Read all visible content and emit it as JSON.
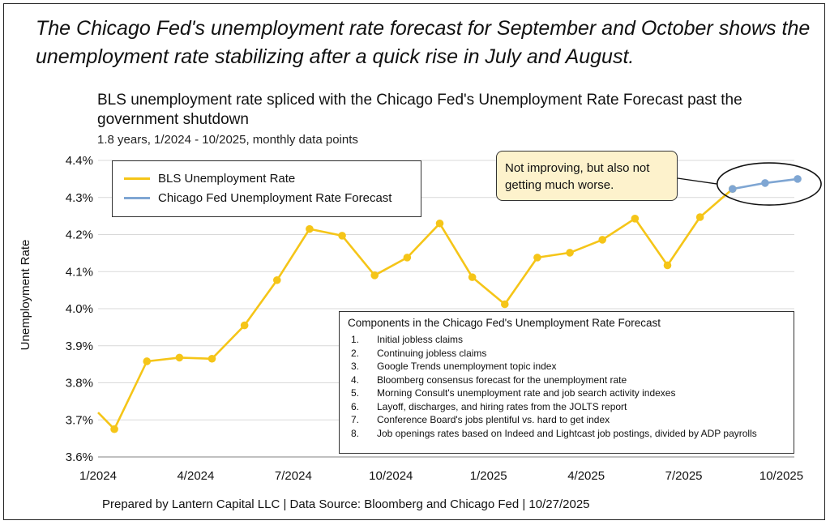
{
  "headline": "The Chicago Fed's unemployment rate forecast for September and October shows the unemployment rate stabilizing after a quick rise in July and August.",
  "footer": "Prepared by Lantern Capital LLC | Data Source: Bloomberg and Chicago Fed | 10/27/2025",
  "callout": "Not improving, but also not getting much worse.",
  "components": {
    "title": "Components in the Chicago Fed's Unemployment Rate Forecast",
    "items": [
      {
        "num": "1.",
        "text": "Initial jobless claims"
      },
      {
        "num": "2.",
        "text": "Continuing jobless claims"
      },
      {
        "num": "3.",
        "text": "Google Trends unemployment topic index"
      },
      {
        "num": "4.",
        "text": "Bloomberg consensus forecast for the unemployment rate"
      },
      {
        "num": "5.",
        "text": "Morning Consult's unemployment rate and job search activity indexes"
      },
      {
        "num": "6.",
        "text": "Layoff, discharges, and hiring rates from the JOLTS report"
      },
      {
        "num": "7.",
        "text": "Conference Board's jobs plentiful vs. hard to get index"
      },
      {
        "num": "8.",
        "text": "Job openings rates based on Indeed and Lightcast job postings, divided by ADP payrolls"
      }
    ]
  },
  "colors": {
    "bls": "#f5c518",
    "forecast": "#7fa6d3",
    "callout_bg": "#fdf2cc"
  },
  "chart_data": {
    "type": "line",
    "title": "BLS unemployment rate spliced with the Chicago Fed's Unemployment Rate Forecast past the government shutdown",
    "subtitle": "1.8 years, 1/2024 - 10/2025, monthly data points",
    "ylabel": "Unemployment Rate",
    "ylim": [
      3.6,
      4.4
    ],
    "yticks": [
      3.6,
      3.7,
      3.8,
      3.9,
      4.0,
      4.1,
      4.2,
      4.3,
      4.4
    ],
    "ytick_labels": [
      "3.6%",
      "3.7%",
      "3.8%",
      "3.9%",
      "4.0%",
      "4.1%",
      "4.2%",
      "4.3%",
      "4.4%"
    ],
    "xlim": [
      0,
      21
    ],
    "xtick_positions": [
      0,
      3,
      6,
      9,
      12,
      15,
      18,
      21
    ],
    "xtick_labels": [
      "1/2024",
      "4/2024",
      "7/2024",
      "10/2024",
      "1/2025",
      "4/2025",
      "7/2025",
      "10/2025"
    ],
    "series": [
      {
        "name": "BLS Unemployment Rate",
        "color": "#f5c518",
        "x": [
          0,
          0.5,
          1.5,
          2.5,
          3.5,
          4.5,
          5.5,
          6.5,
          7.5,
          8.5,
          9.5,
          10.5,
          11.5,
          12.5,
          13.5,
          14.5,
          15.5,
          16.5,
          17.5,
          18.5,
          19.5
        ],
        "values": [
          3.72,
          3.675,
          3.858,
          3.868,
          3.865,
          3.955,
          4.077,
          4.215,
          4.197,
          4.09,
          4.138,
          4.23,
          4.085,
          4.012,
          4.138,
          4.151,
          4.186,
          4.243,
          4.117,
          4.247,
          4.323
        ]
      },
      {
        "name": "Chicago Fed Unemployment Rate Forecast",
        "color": "#7fa6d3",
        "x": [
          19.5,
          20.5,
          21.5
        ],
        "values": [
          4.323,
          4.339,
          4.35
        ]
      }
    ]
  }
}
